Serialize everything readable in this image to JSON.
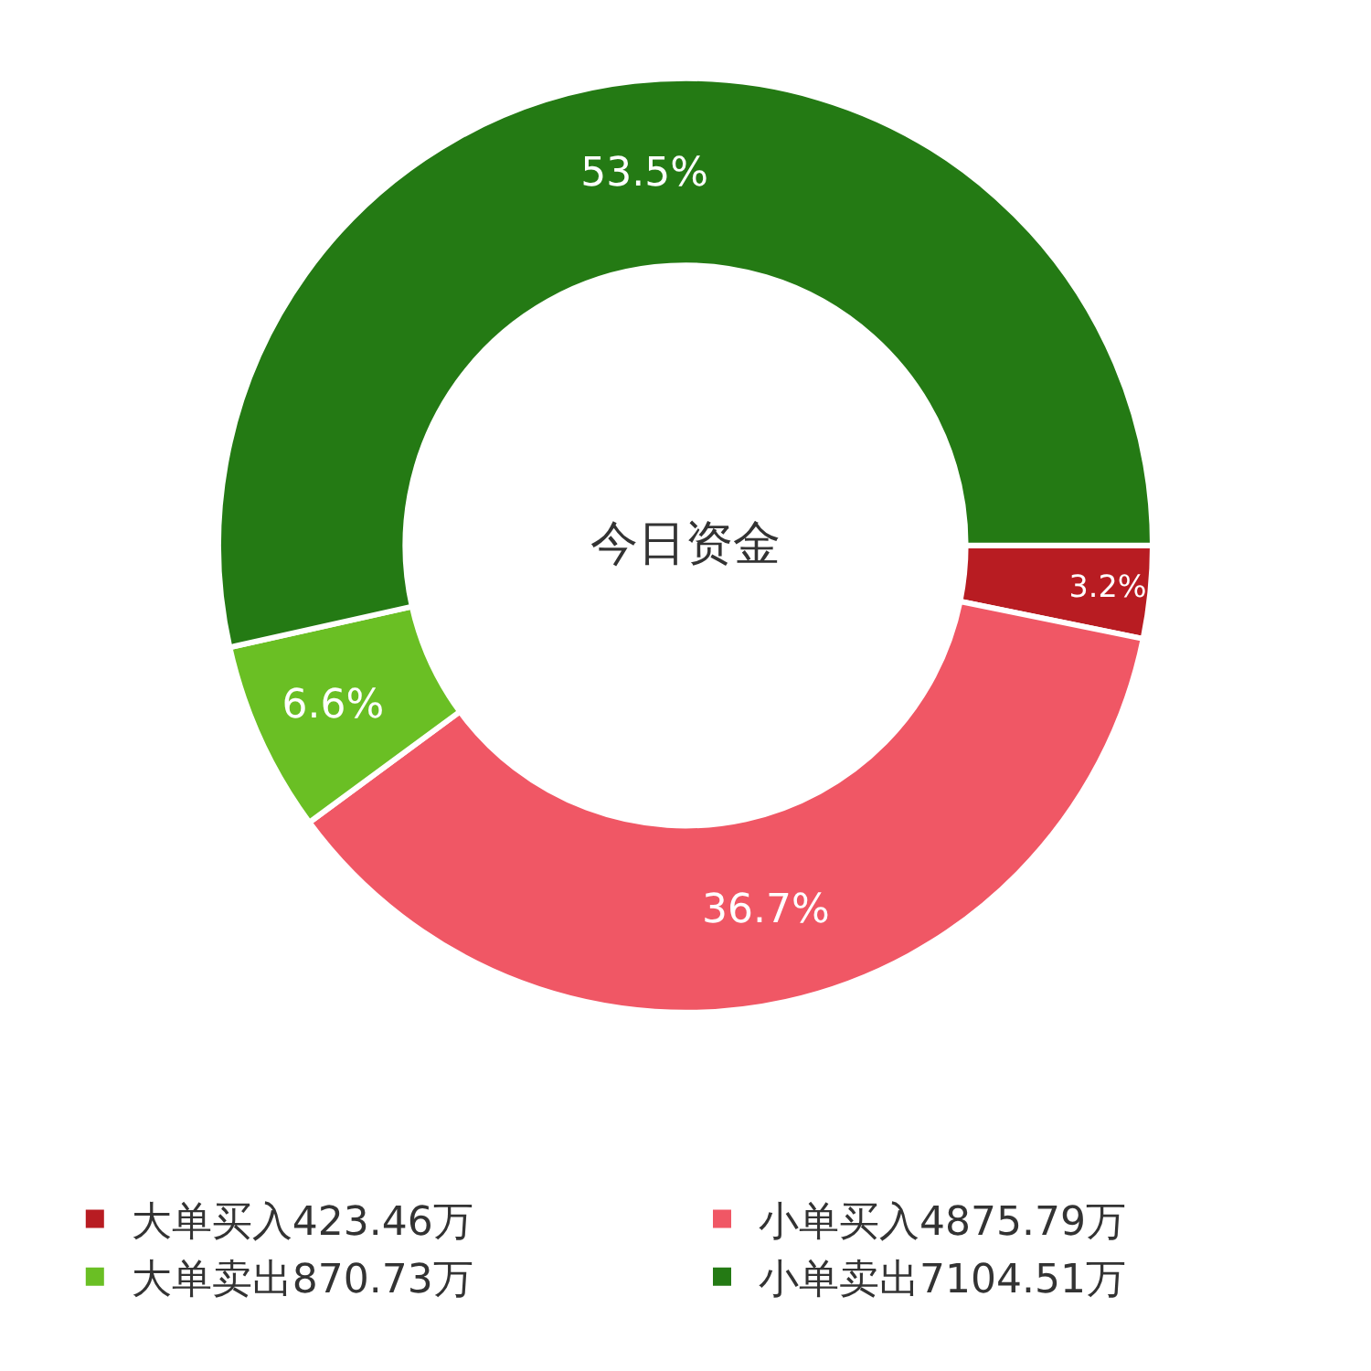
{
  "chart_data": {
    "type": "donut",
    "title": "今日资金",
    "categories": [
      "大单买入423.46万",
      "小单买入4875.79万",
      "大单卖出870.73万",
      "小单卖出7104.51万"
    ],
    "values": [
      3.2,
      36.7,
      6.6,
      53.5
    ],
    "colors": [
      "#b81c22",
      "#f05765",
      "#6abf24",
      "#247a14"
    ],
    "value_labels": [
      "3.2%",
      "36.7%",
      "6.6%",
      "53.5%"
    ],
    "legend": "bottom"
  }
}
